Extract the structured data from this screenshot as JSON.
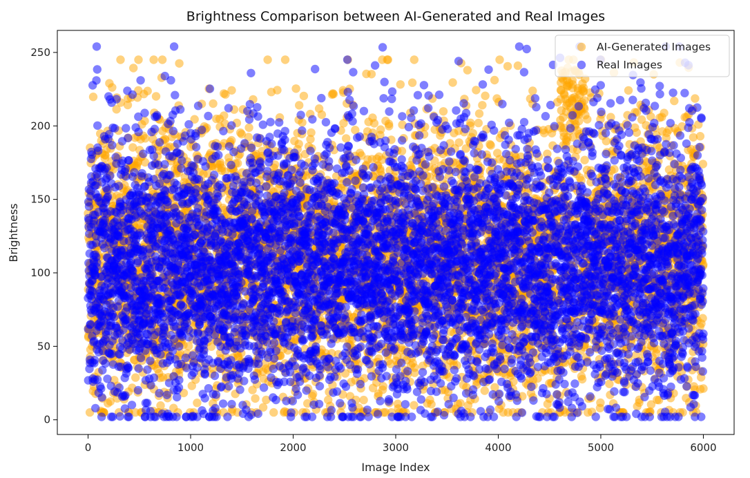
{
  "chart_data": {
    "type": "scatter",
    "title": "Brightness Comparison between AI-Generated and Real Images",
    "xlabel": "Image Index",
    "ylabel": "Brightness",
    "xlim": [
      -300,
      6300
    ],
    "ylim": [
      -10,
      265
    ],
    "xticks": [
      0,
      1000,
      2000,
      3000,
      4000,
      5000,
      6000
    ],
    "xtick_labels": [
      "0",
      "1000",
      "2000",
      "3000",
      "4000",
      "5000",
      "6000"
    ],
    "yticks": [
      0,
      50,
      100,
      150,
      200,
      250
    ],
    "ytick_labels": [
      "0",
      "50",
      "100",
      "150",
      "200",
      "250"
    ],
    "grid": false,
    "legend_position": "top-right",
    "n_points_per_series": 6000,
    "marker_alpha": 0.5,
    "series": [
      {
        "name": "AI-Generated Images",
        "color": "#FFA500",
        "x_range": [
          0,
          6000
        ],
        "y_range": [
          5,
          245
        ],
        "y_typical_range": [
          40,
          180
        ],
        "note_regions": [
          {
            "x": [
              4600,
              4850
            ],
            "y": [
              190,
              240
            ],
            "density": "high"
          }
        ]
      },
      {
        "name": "Real Images",
        "color": "#0000FF",
        "x_range": [
          0,
          6000
        ],
        "y_range": [
          2,
          254
        ],
        "y_typical_range": [
          30,
          190
        ]
      }
    ]
  }
}
